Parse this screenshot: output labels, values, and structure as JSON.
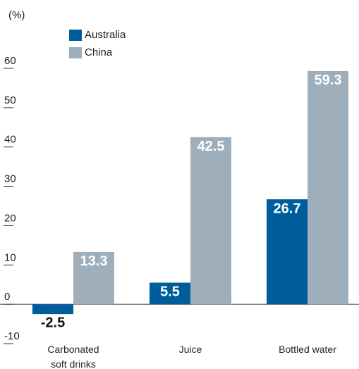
{
  "chart_data": {
    "type": "bar",
    "unit_label": "(%)",
    "categories": [
      "Carbonated soft drinks",
      "Juice",
      "Bottled water"
    ],
    "series": [
      {
        "name": "Australia",
        "color": "#005d9c",
        "values": [
          -2.5,
          5.5,
          26.7
        ]
      },
      {
        "name": "China",
        "color": "#9eafbb",
        "values": [
          13.3,
          42.5,
          59.3
        ]
      }
    ],
    "ylim": [
      -10,
      60
    ],
    "yticks": [
      -10,
      0,
      10,
      20,
      30,
      40,
      50,
      60
    ],
    "legend": "top-left"
  }
}
